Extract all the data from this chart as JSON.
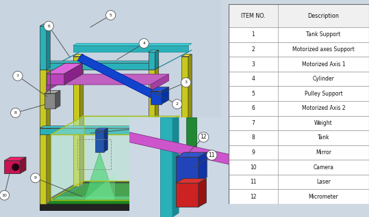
{
  "bg_color": "#cdd8e3",
  "table_items": [
    [
      "ITEM NO.",
      "Description"
    ],
    [
      "1",
      "Tank Support"
    ],
    [
      "2",
      "Motorized axes Support"
    ],
    [
      "3",
      "Motorized Axis 1"
    ],
    [
      "4",
      "Cylinder"
    ],
    [
      "5",
      "Pulley Support"
    ],
    [
      "6",
      "Motorized Axis 2"
    ],
    [
      "7",
      "Weight"
    ],
    [
      "8",
      "Tank"
    ],
    [
      "9",
      "Mirror"
    ],
    [
      "10",
      "Camera"
    ],
    [
      "11",
      "Laser"
    ],
    [
      "12",
      "Micrometer"
    ]
  ],
  "fig_width": 5.39,
  "fig_height": 3.18,
  "dpi": 100,
  "colors": {
    "teal": "#2ab0b8",
    "teal_dark": "#1a8890",
    "teal_top": "#3dd0d8",
    "yellow": "#c8c820",
    "yellow_dark": "#909010",
    "yellow_top": "#e8e830",
    "pink": "#c060c0",
    "pink_dark": "#803080",
    "blue": "#2255cc",
    "blue_dark": "#112299",
    "blue_top": "#3366dd",
    "green_dark": "#1a7a1a",
    "green_mid": "#28a028",
    "green_light": "#a8e8b8",
    "black": "#111111",
    "gray": "#777777",
    "gray_light": "#aaaaaa",
    "crimson": "#cc1155",
    "crimson_dark": "#881133"
  }
}
